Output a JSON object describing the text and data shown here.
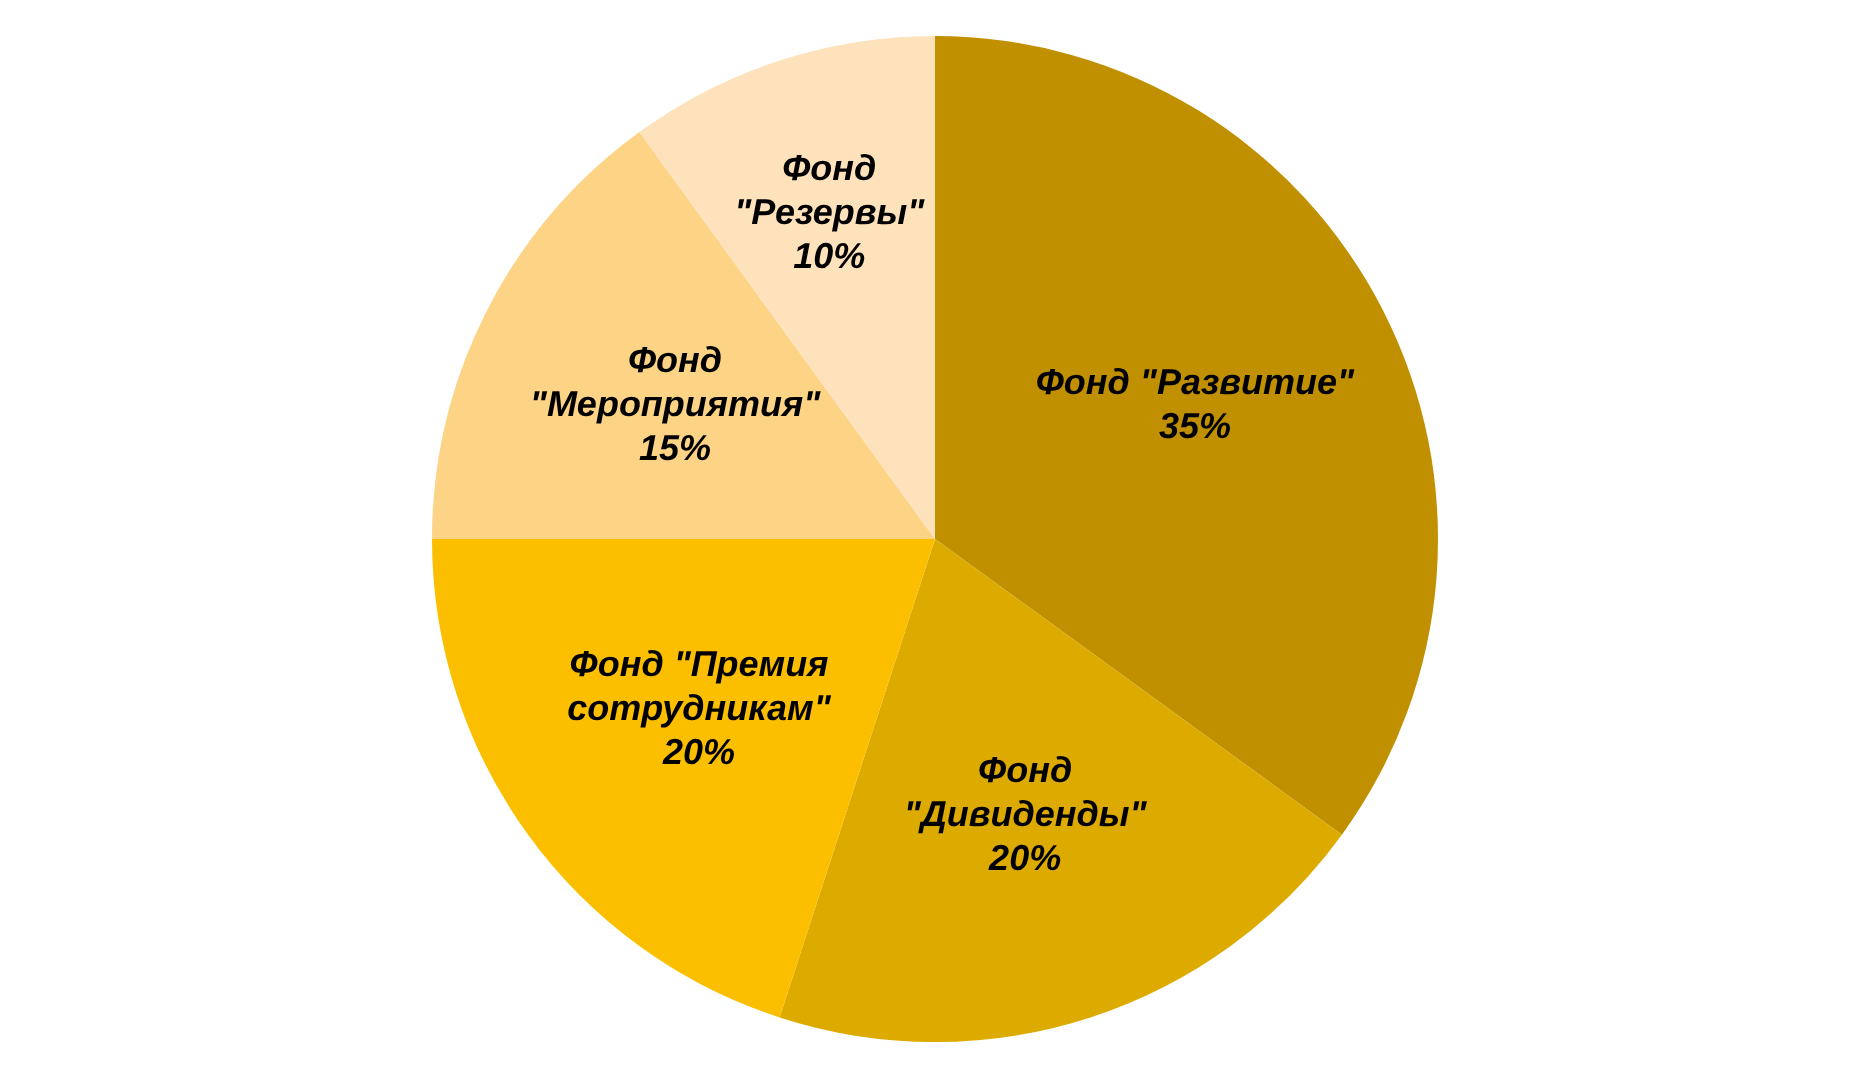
{
  "chart_data": {
    "type": "pie",
    "categories": [
      "Фонд \"Развитие\"",
      "Фонд \"Дивиденды\"",
      "Фонд \"Премия сотрудникам\"",
      "Фонд \"Мероприятия\"",
      "Фонд \"Резервы\""
    ],
    "values": [
      35,
      20,
      20,
      15,
      10
    ],
    "value_labels": [
      "35%",
      "20%",
      "20%",
      "15%",
      "10%"
    ],
    "colors": [
      "#c09000",
      "#ddaa00",
      "#fbbf00",
      "#fdd385",
      "#fee2bb"
    ],
    "legend": false
  }
}
